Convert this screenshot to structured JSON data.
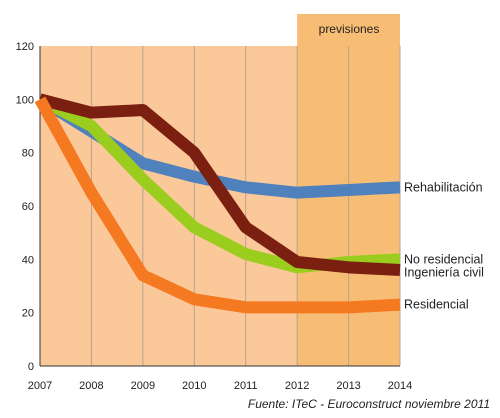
{
  "chart_data": {
    "type": "line",
    "title": "",
    "xlabel": "",
    "ylabel": "",
    "x": [
      "2007",
      "2008",
      "2009",
      "2010",
      "2011",
      "2012",
      "2013",
      "2014"
    ],
    "ylim": [
      0,
      120
    ],
    "yticks": [
      "0",
      "20",
      "40",
      "60",
      "80",
      "100",
      "120"
    ],
    "grid": "vertical",
    "forecast": {
      "label": "previsiones",
      "from": "2012",
      "to": "2014"
    },
    "series": [
      {
        "name": "Rehabilitación",
        "color": "#4f81bd",
        "values": [
          100,
          88,
          76,
          71,
          67,
          65,
          66,
          67
        ]
      },
      {
        "name": "No residencial",
        "color": "#9acd1e",
        "values": [
          100,
          90,
          70,
          52,
          42,
          37,
          39,
          40
        ]
      },
      {
        "name": "Ingeniería civil",
        "color": "#7b1f10",
        "values": [
          100,
          95,
          96,
          80,
          52,
          39,
          37,
          36
        ]
      },
      {
        "name": "Residencial",
        "color": "#f47920",
        "values": [
          100,
          65,
          34,
          25,
          22,
          22,
          22,
          23
        ]
      }
    ],
    "source": "Fuente: ITeC - Euroconstruct noviembre 2011",
    "colors": {
      "background": "#fbc89a",
      "forecast_band": "#f8bd74",
      "grid": "#b7a48f"
    }
  }
}
